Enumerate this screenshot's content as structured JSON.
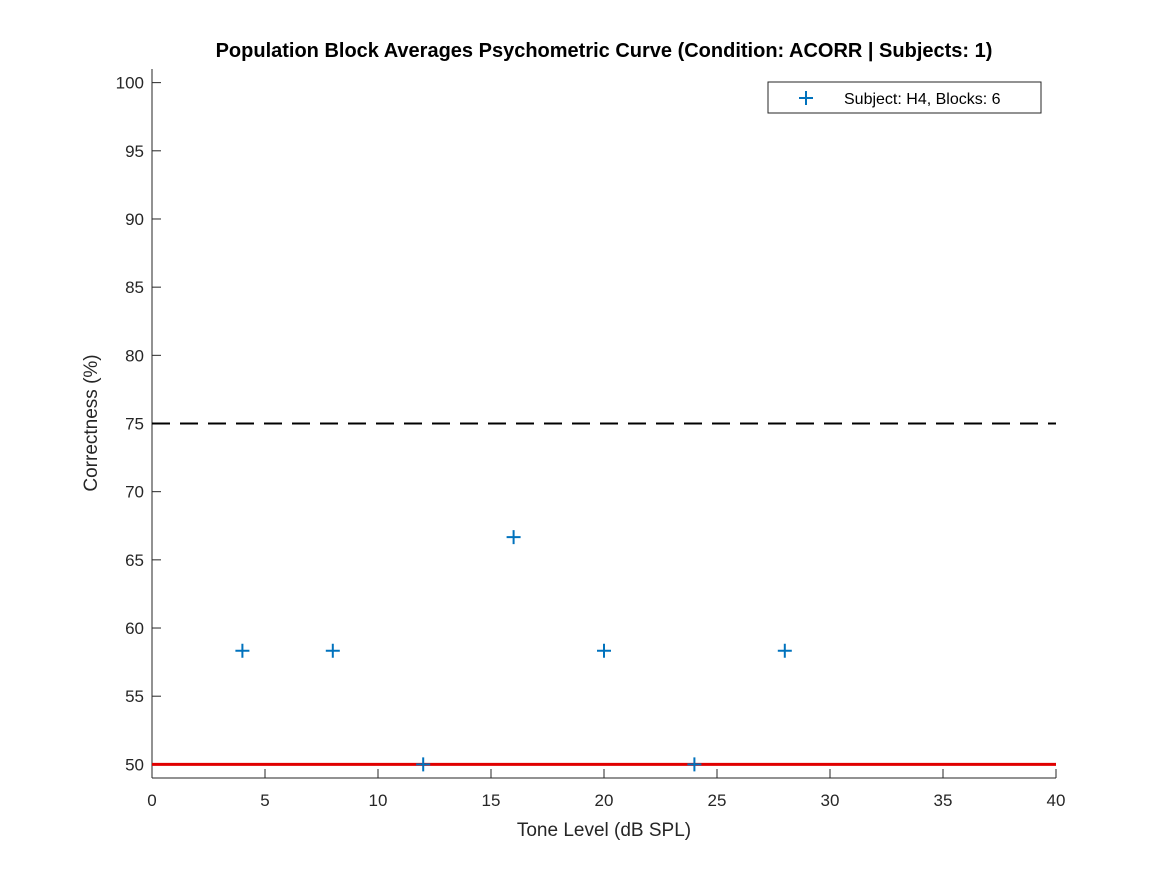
{
  "colors": {
    "marker": "#0072BD",
    "chance_line": "#E00000",
    "threshold_line": "#000000",
    "axis": "#262626",
    "background": "#ffffff"
  },
  "chart_data": {
    "type": "scatter",
    "title": "Population Block Averages Psychometric Curve (Condition: ACORR | Subjects: 1)",
    "xlabel": "Tone Level (dB SPL)",
    "ylabel": "Correctness (%)",
    "xlim": [
      0,
      40
    ],
    "ylim": [
      49,
      101
    ],
    "xticks": [
      0,
      5,
      10,
      15,
      20,
      25,
      30,
      35,
      40
    ],
    "yticks": [
      50,
      55,
      60,
      65,
      70,
      75,
      80,
      85,
      90,
      95,
      100
    ],
    "grid": false,
    "legend_position": "top-right",
    "series": [
      {
        "name": "Subject: H4, Blocks: 6",
        "marker": "plus",
        "x": [
          4,
          8,
          12,
          16,
          20,
          24,
          28
        ],
        "y": [
          58.33,
          58.33,
          50,
          66.67,
          58.33,
          50,
          58.33
        ]
      }
    ],
    "reference_lines": [
      {
        "y": 75,
        "style": "dashed",
        "color": "black"
      },
      {
        "y": 50,
        "style": "solid",
        "color": "red"
      }
    ]
  }
}
